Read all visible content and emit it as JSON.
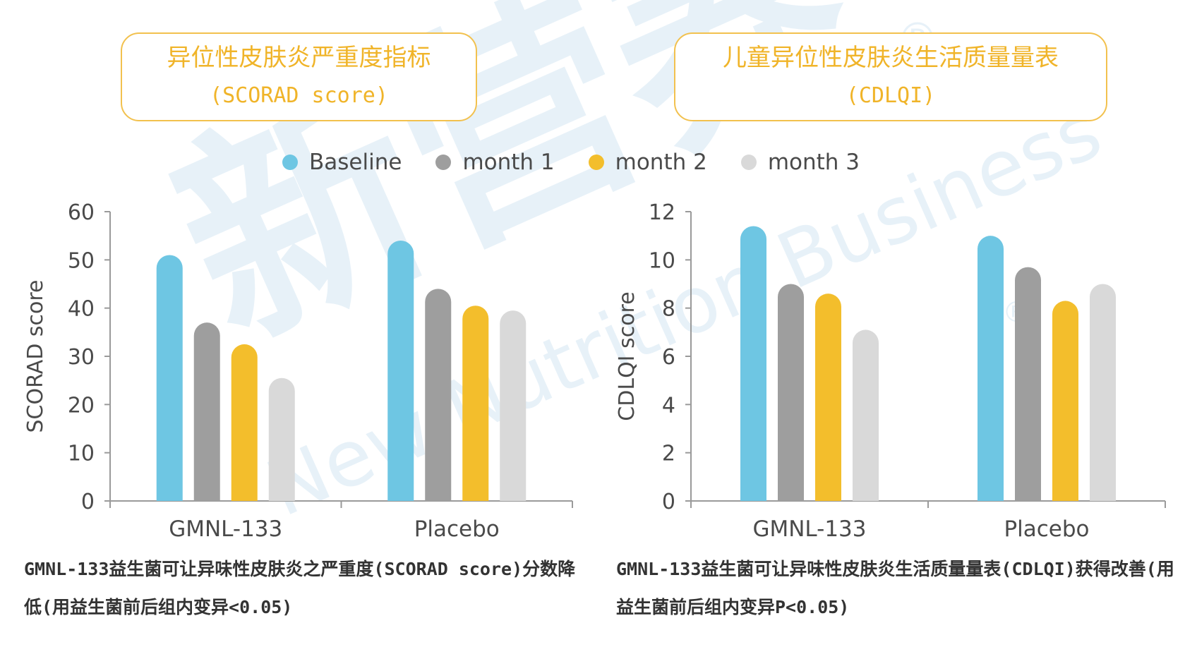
{
  "titles": {
    "left": {
      "main": "异位性皮肤炎严重度指标",
      "sub": "(SCORAD score)"
    },
    "right": {
      "main": "儿童异位性皮肤炎生活质量量表",
      "sub": "(CDLQI)"
    }
  },
  "legend": [
    {
      "label": "Baseline",
      "color": "#6EC6E3"
    },
    {
      "label": "month 1",
      "color": "#9E9E9E"
    },
    {
      "label": "month 2",
      "color": "#F3BE2C"
    },
    {
      "label": "month 3",
      "color": "#D9D9D9"
    }
  ],
  "captions": {
    "left": "GMNL-133益生菌可让异味性皮肤炎之严重度(SCORAD score)分数降低(用益生菌前后组内变异<0.05)",
    "right": "GMNL-133益生菌可让异味性皮肤炎生活质量量表(CDLQI)获得改善(用益生菌前后组内变异P<0.05)"
  },
  "watermark": {
    "main": "新营养",
    "sub": "New Nutrition Business",
    "reg": "®"
  },
  "chart_data": [
    {
      "type": "bar",
      "ylabel": "SCORAD score",
      "xlabel": "",
      "ylim": [
        0,
        60
      ],
      "yticks": [
        0,
        10,
        20,
        30,
        40,
        50,
        60
      ],
      "categories": [
        "GMNL-133",
        "Placebo"
      ],
      "series": [
        {
          "name": "Baseline",
          "values": [
            51,
            54
          ]
        },
        {
          "name": "month 1",
          "values": [
            37,
            44
          ]
        },
        {
          "name": "month 2",
          "values": [
            32.5,
            40.5
          ]
        },
        {
          "name": "month 3",
          "values": [
            25.5,
            39.5
          ]
        }
      ]
    },
    {
      "type": "bar",
      "ylabel": "CDLQI score",
      "xlabel": "",
      "ylim": [
        0,
        12
      ],
      "yticks": [
        0,
        2,
        4,
        6,
        8,
        10,
        12
      ],
      "categories": [
        "GMNL-133",
        "Placebo"
      ],
      "series": [
        {
          "name": "Baseline",
          "values": [
            11.4,
            11
          ]
        },
        {
          "name": "month 1",
          "values": [
            9,
            9.7
          ]
        },
        {
          "name": "month 2",
          "values": [
            8.6,
            8.3
          ]
        },
        {
          "name": "month 3",
          "values": [
            7.1,
            9
          ]
        }
      ]
    }
  ]
}
